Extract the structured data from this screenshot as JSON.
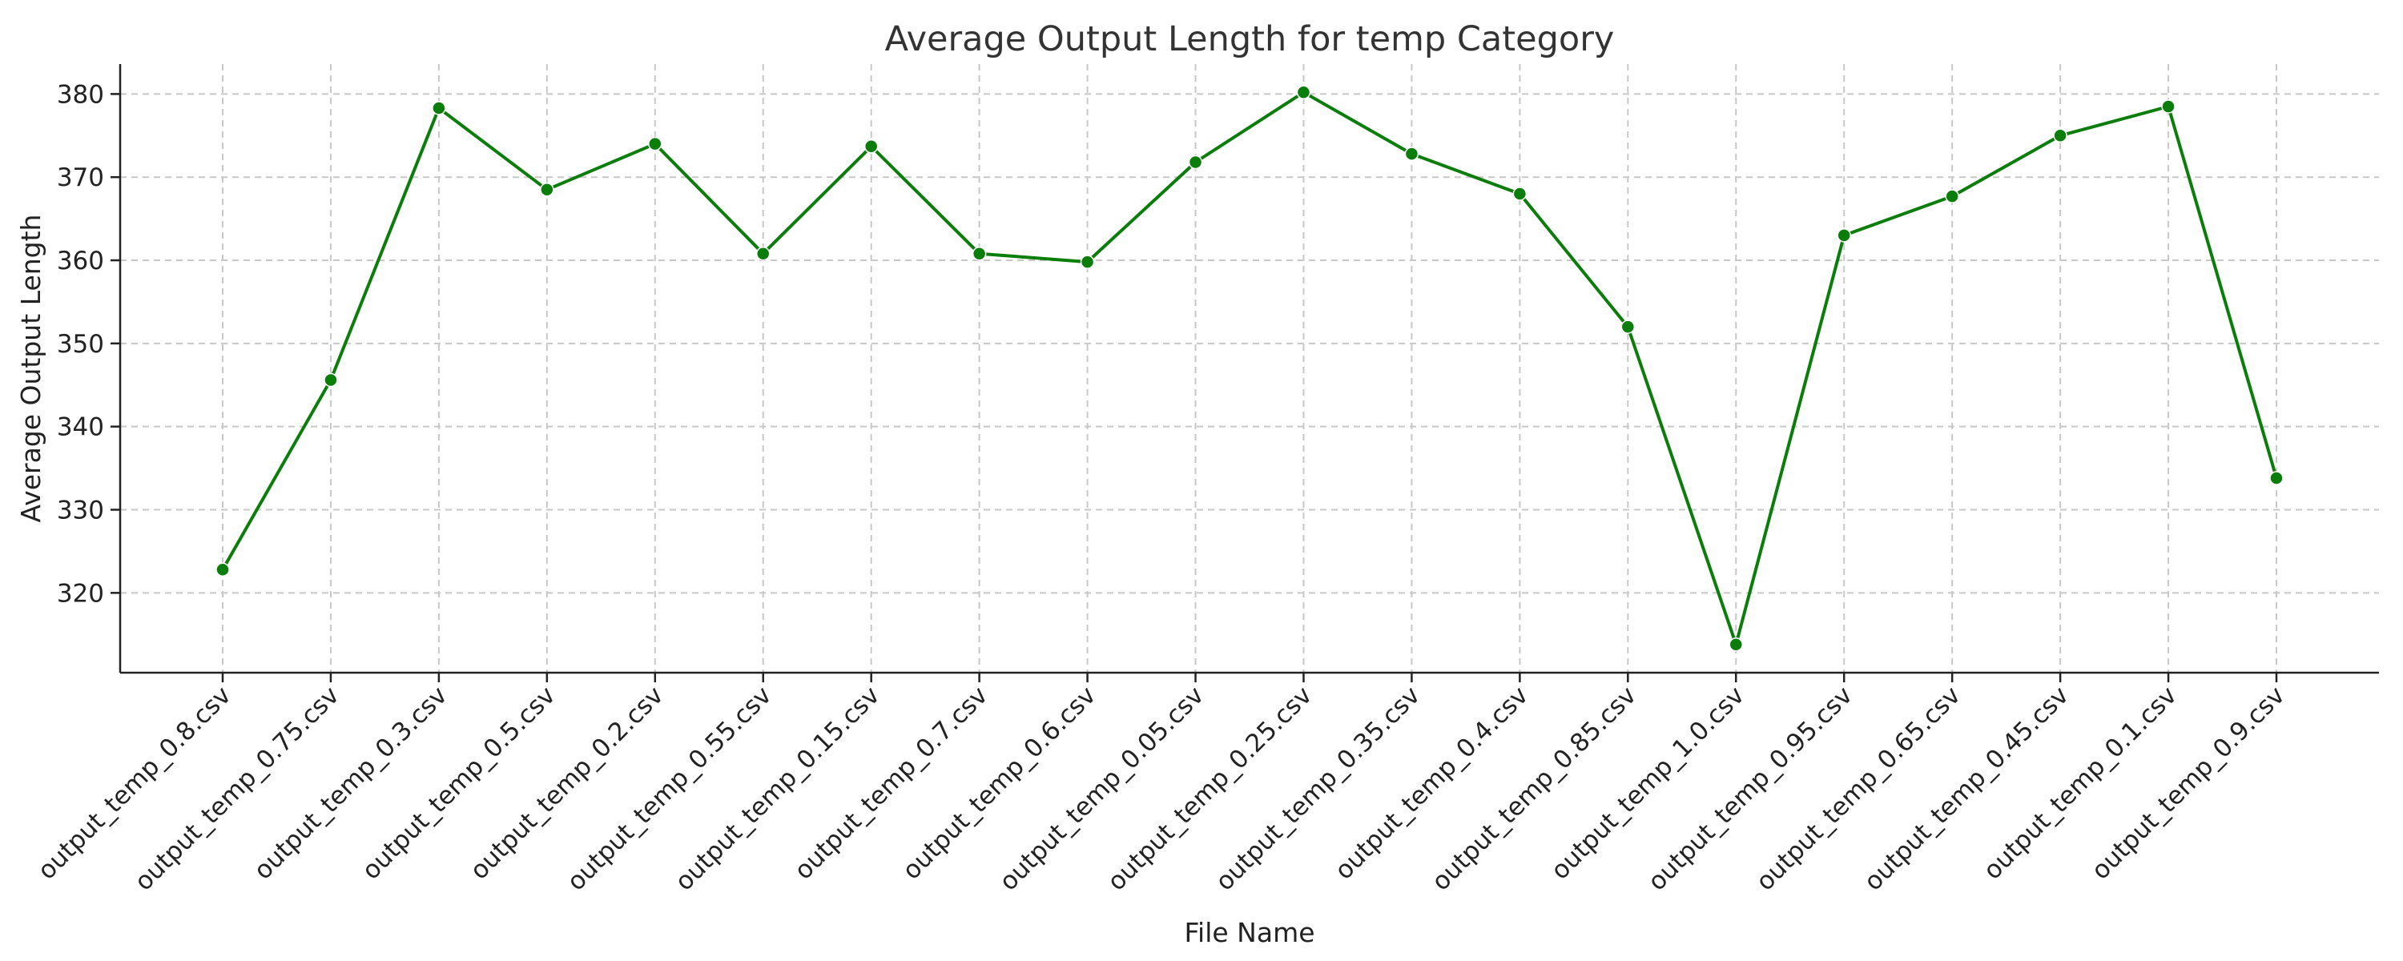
{
  "colors": {
    "series": "#0a7d0a",
    "grid": "#c8c8c8",
    "axis": "#222222"
  },
  "chart_data": {
    "type": "line",
    "title": "Average Output Length for temp Category",
    "xlabel": "File Name",
    "ylabel": "Average Output Length",
    "categories": [
      "output_temp_0.8.csv",
      "output_temp_0.75.csv",
      "output_temp_0.3.csv",
      "output_temp_0.5.csv",
      "output_temp_0.2.csv",
      "output_temp_0.55.csv",
      "output_temp_0.15.csv",
      "output_temp_0.7.csv",
      "output_temp_0.6.csv",
      "output_temp_0.05.csv",
      "output_temp_0.25.csv",
      "output_temp_0.35.csv",
      "output_temp_0.4.csv",
      "output_temp_0.85.csv",
      "output_temp_1.0.csv",
      "output_temp_0.95.csv",
      "output_temp_0.65.csv",
      "output_temp_0.45.csv",
      "output_temp_0.1.csv",
      "output_temp_0.9.csv"
    ],
    "series": [
      {
        "values": [
          322.8,
          345.6,
          378.3,
          368.5,
          374.0,
          360.8,
          373.7,
          360.8,
          359.8,
          371.8,
          380.2,
          372.8,
          368.0,
          352.0,
          313.8,
          363.0,
          367.7,
          375.0,
          378.5,
          333.8
        ],
        "color": "#0a7d0a",
        "marker": "circle"
      }
    ],
    "yticks": [
      320,
      330,
      340,
      350,
      360,
      370,
      380
    ],
    "ylim": [
      310.4,
      383.6
    ],
    "grid": true,
    "legend": false
  }
}
